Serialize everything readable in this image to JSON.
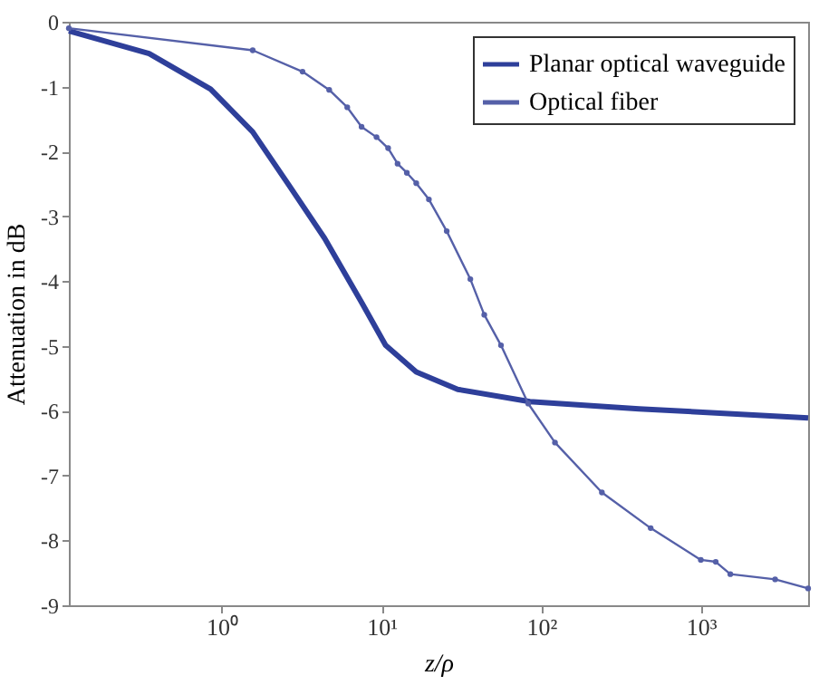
{
  "chart_data": {
    "type": "line",
    "xlabel": "z/ρ",
    "ylabel": "Attenuation in dB",
    "log": "x",
    "xlim": [
      0.11,
      4700
    ],
    "xticks": [
      {
        "value": 1,
        "label": "10⁰"
      },
      {
        "value": 10,
        "label": "10¹"
      },
      {
        "value": 100,
        "label": "10²"
      },
      {
        "value": 1000,
        "label": "10³"
      }
    ],
    "ylim": [
      -9,
      0
    ],
    "yticks": [
      -9,
      -8,
      -7,
      -6,
      -5,
      -4,
      -3,
      -2,
      -1,
      0
    ],
    "grid": false,
    "legend": "top right",
    "series": [
      {
        "name": "Planar optical waveguide",
        "color": "#2e3f9a",
        "marker": "none",
        "x": [
          0.11,
          0.35,
          0.85,
          1.56,
          2.63,
          4.4,
          7.5,
          10.6,
          12.6,
          16.5,
          30,
          85,
          410,
          4700
        ],
        "values": [
          -0.14,
          -0.49,
          -1.04,
          -1.7,
          -2.52,
          -3.34,
          -4.33,
          -4.99,
          -5.15,
          -5.4,
          -5.67,
          -5.86,
          -5.97,
          -6.11
        ]
      },
      {
        "name": "Optical fiber",
        "color": "#5560a8",
        "marker": "circle",
        "x": [
          0.11,
          1.56,
          3.2,
          4.7,
          6.1,
          7.5,
          9.3,
          11,
          12.6,
          14.4,
          16.5,
          19.8,
          25.6,
          36,
          44,
          56,
          83,
          122,
          240,
          485,
          1000,
          1240,
          1530,
          2920,
          4700
        ],
        "values": [
          -0.1,
          -0.44,
          -0.77,
          -1.05,
          -1.32,
          -1.62,
          -1.78,
          -1.95,
          -2.19,
          -2.33,
          -2.49,
          -2.74,
          -3.23,
          -3.97,
          -4.52,
          -4.99,
          -5.89,
          -6.49,
          -7.26,
          -7.81,
          -8.3,
          -8.33,
          -8.52,
          -8.6,
          -8.74
        ]
      }
    ]
  }
}
